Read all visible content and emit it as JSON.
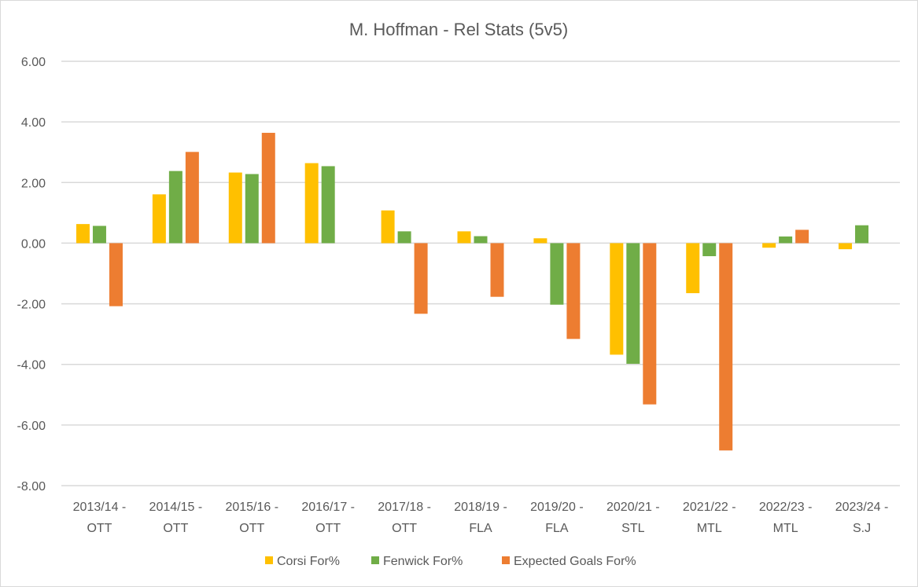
{
  "chart_data": {
    "type": "bar",
    "title": "M. Hoffman - Rel Stats (5v5)",
    "xlabel": "",
    "ylabel": "",
    "ylim": [
      -8,
      6
    ],
    "yticks": [
      6,
      4,
      2,
      0,
      -2,
      -4,
      -6,
      -8
    ],
    "ytick_labels": [
      "6.00",
      "4.00",
      "2.00",
      "0.00",
      "-2.00",
      "-4.00",
      "-6.00",
      "-8.00"
    ],
    "grid": true,
    "legend_position": "bottom",
    "categories": [
      [
        "2013/14 -",
        "OTT"
      ],
      [
        "2014/15 -",
        "OTT"
      ],
      [
        "2015/16 -",
        "OTT"
      ],
      [
        "2016/17 -",
        "OTT"
      ],
      [
        "2017/18 -",
        "OTT"
      ],
      [
        "2018/19 -",
        "FLA"
      ],
      [
        "2019/20 -",
        "FLA"
      ],
      [
        "2020/21 -",
        "STL"
      ],
      [
        "2021/22 -",
        "MTL"
      ],
      [
        "2022/23 -",
        "MTL"
      ],
      [
        "2023/24 -",
        "S.J"
      ]
    ],
    "series": [
      {
        "name": "Corsi For%",
        "color": "#FFC000",
        "values": [
          0.63,
          1.61,
          2.33,
          2.64,
          1.08,
          0.39,
          0.16,
          -3.68,
          -1.65,
          -0.15,
          -0.2
        ]
      },
      {
        "name": "Fenwick For%",
        "color": "#70AD47",
        "values": [
          0.57,
          2.38,
          2.28,
          2.54,
          0.39,
          0.23,
          -2.03,
          -3.98,
          -0.43,
          0.22,
          0.59
        ]
      },
      {
        "name": "Expected Goals For%",
        "color": "#ED7D31",
        "values": [
          -2.08,
          3.01,
          3.64,
          null,
          -2.33,
          -1.77,
          -3.16,
          -5.32,
          -6.84,
          0.44,
          null
        ]
      }
    ]
  }
}
